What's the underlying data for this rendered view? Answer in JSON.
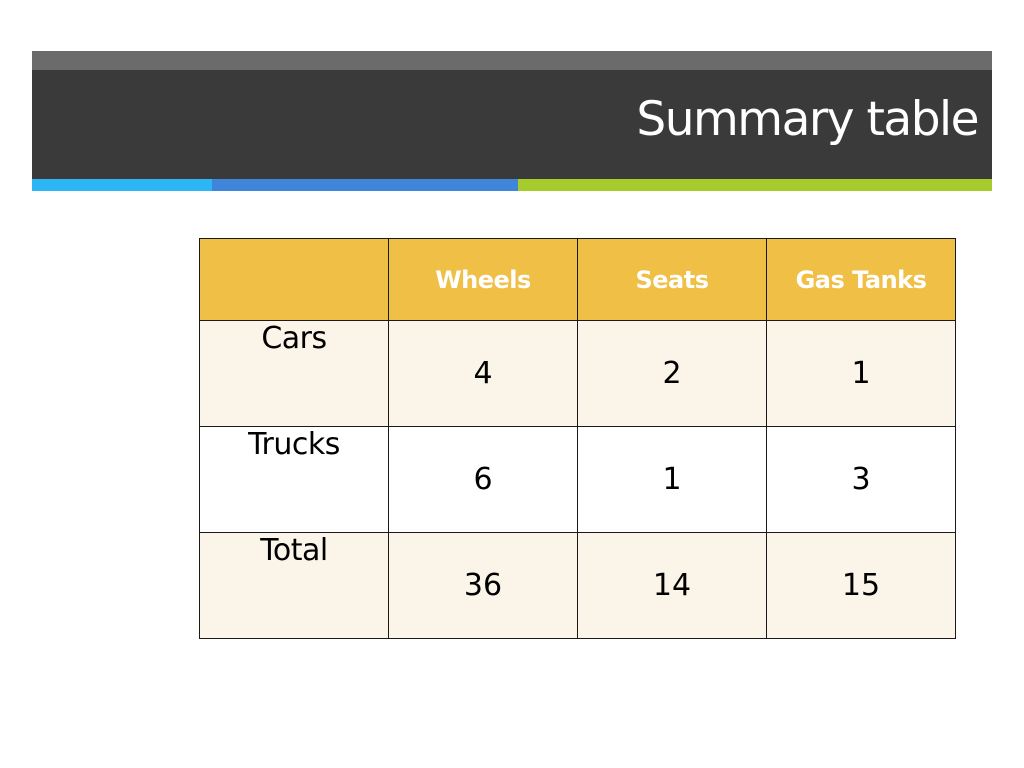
{
  "slide": {
    "title": "Summary table"
  },
  "colors": {
    "header_top": "#6b6b6b",
    "header_main": "#3a3a3a",
    "accent": [
      "#2db6f5",
      "#3f85d9",
      "#a6cb2d"
    ],
    "table_header": "#f0bf45",
    "table_row_alt": "#faf4e9"
  },
  "table": {
    "columns": [
      "",
      "Wheels",
      "Seats",
      "Gas Tanks"
    ],
    "rows": [
      {
        "label": "Cars",
        "values": [
          "4",
          "2",
          "1"
        ]
      },
      {
        "label": "Trucks",
        "values": [
          "6",
          "1",
          "3"
        ]
      },
      {
        "label": "Total",
        "values": [
          "36",
          "14",
          "15"
        ]
      }
    ]
  }
}
